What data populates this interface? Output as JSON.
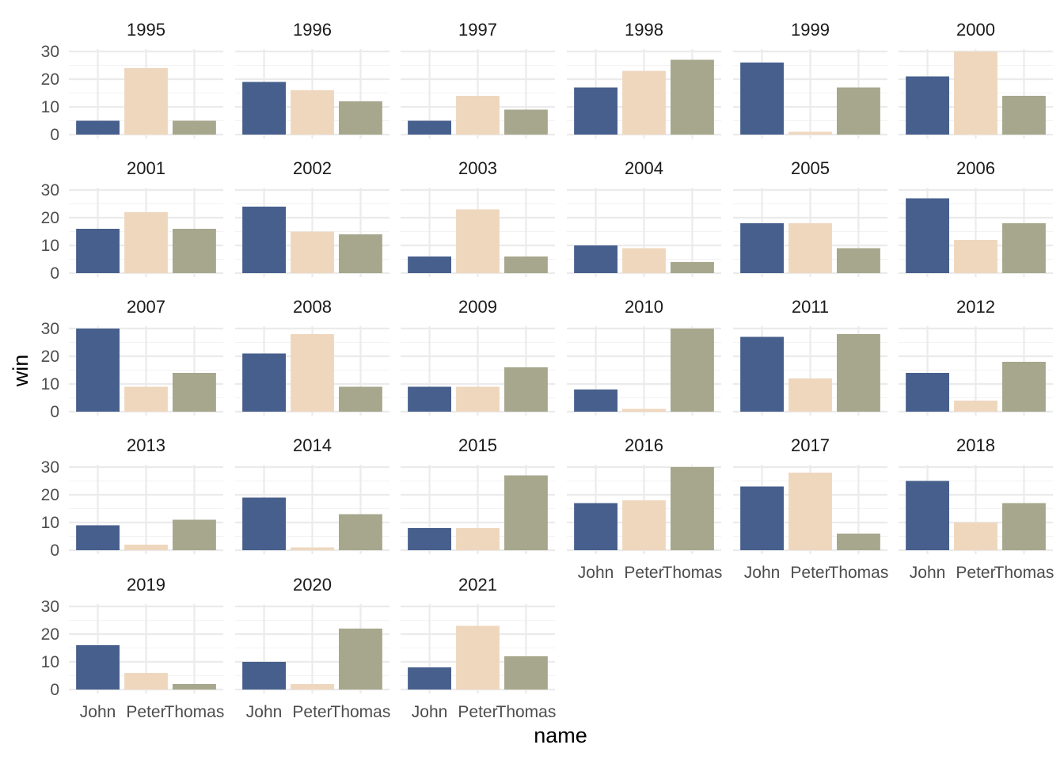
{
  "chart_data": {
    "type": "bar",
    "facet_by": "year",
    "xlabel": "name",
    "ylabel": "win",
    "categories": [
      "John",
      "Peter",
      "Thomas"
    ],
    "colors": {
      "John": "#475F8C",
      "Peter": "#EFD7BE",
      "Thomas": "#A6A78C"
    },
    "ylim": [
      0,
      30
    ],
    "y_ticks": [
      0,
      10,
      20,
      30
    ],
    "grid": true,
    "legend": "none",
    "panels": [
      {
        "year": "1995",
        "values": [
          5,
          24,
          5
        ]
      },
      {
        "year": "1996",
        "values": [
          19,
          16,
          12
        ]
      },
      {
        "year": "1997",
        "values": [
          5,
          14,
          9
        ]
      },
      {
        "year": "1998",
        "values": [
          17,
          23,
          27
        ]
      },
      {
        "year": "1999",
        "values": [
          26,
          1,
          17
        ]
      },
      {
        "year": "2000",
        "values": [
          21,
          30,
          14
        ]
      },
      {
        "year": "2001",
        "values": [
          16,
          22,
          16
        ]
      },
      {
        "year": "2002",
        "values": [
          24,
          15,
          14
        ]
      },
      {
        "year": "2003",
        "values": [
          6,
          23,
          6
        ]
      },
      {
        "year": "2004",
        "values": [
          10,
          9,
          4
        ]
      },
      {
        "year": "2005",
        "values": [
          18,
          18,
          9
        ]
      },
      {
        "year": "2006",
        "values": [
          27,
          12,
          18
        ]
      },
      {
        "year": "2007",
        "values": [
          30,
          9,
          14
        ]
      },
      {
        "year": "2008",
        "values": [
          21,
          28,
          9
        ]
      },
      {
        "year": "2009",
        "values": [
          9,
          9,
          16
        ]
      },
      {
        "year": "2010",
        "values": [
          8,
          1,
          30
        ]
      },
      {
        "year": "2011",
        "values": [
          27,
          12,
          28
        ]
      },
      {
        "year": "2012",
        "values": [
          14,
          4,
          18
        ]
      },
      {
        "year": "2013",
        "values": [
          9,
          2,
          11
        ]
      },
      {
        "year": "2014",
        "values": [
          19,
          1,
          13
        ]
      },
      {
        "year": "2015",
        "values": [
          8,
          8,
          27
        ]
      },
      {
        "year": "2016",
        "values": [
          17,
          18,
          30
        ]
      },
      {
        "year": "2017",
        "values": [
          23,
          28,
          6
        ]
      },
      {
        "year": "2018",
        "values": [
          25,
          10,
          17
        ]
      },
      {
        "year": "2019",
        "values": [
          16,
          6,
          2
        ]
      },
      {
        "year": "2020",
        "values": [
          10,
          2,
          22
        ]
      },
      {
        "year": "2021",
        "values": [
          8,
          23,
          12
        ]
      }
    ]
  }
}
